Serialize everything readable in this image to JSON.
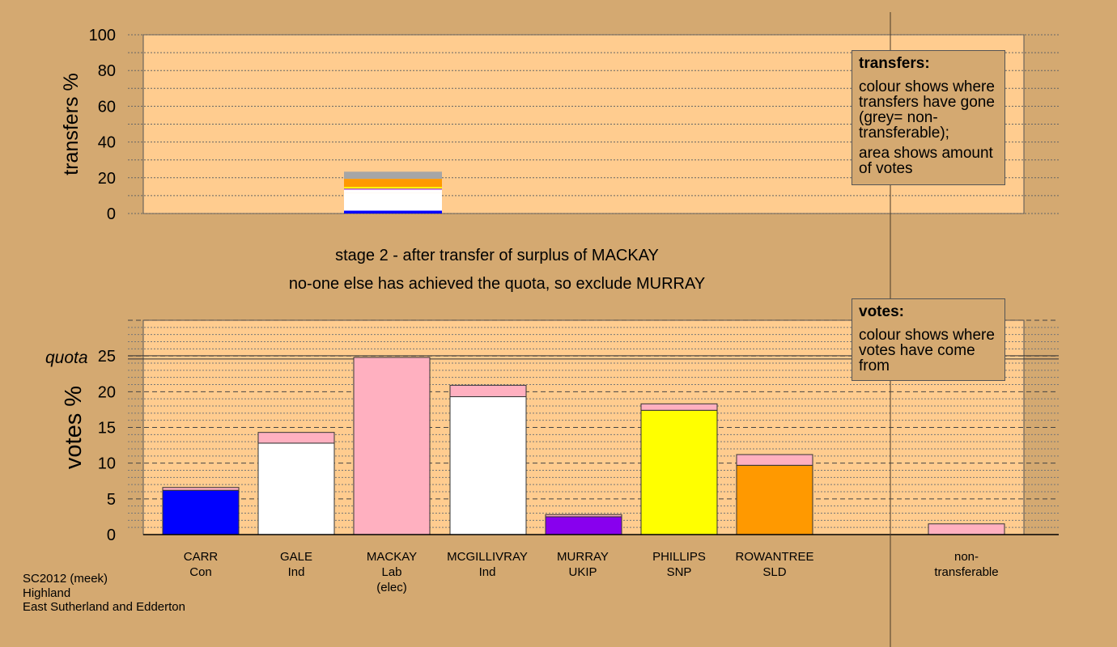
{
  "chart_data": [
    {
      "type": "bar",
      "ylabel": "transfers %",
      "ylim": [
        0,
        100
      ],
      "yticks": [
        0,
        20,
        40,
        60,
        80,
        100
      ],
      "stacked_bar": {
        "category": "MACKAY",
        "segments": [
          {
            "name": "CARR",
            "value": 1.6,
            "color": "#0000ff"
          },
          {
            "name": "GALE",
            "value": 10.0,
            "color": "#ffffff"
          },
          {
            "name": "MCGILLIVRAY",
            "value": 1.8,
            "color": "#ffffff"
          },
          {
            "name": "MURRAY",
            "value": 0.5,
            "color": "#8800ee"
          },
          {
            "name": "PHILLIPS",
            "value": 1.0,
            "color": "#ffff00"
          },
          {
            "name": "ROWANTREE",
            "value": 4.5,
            "color": "#ff9900"
          },
          {
            "name": "non-transferable",
            "value": 4.0,
            "color": "#a6a6a6"
          }
        ]
      }
    },
    {
      "type": "bar",
      "ylabel": "votes %",
      "ylim": [
        0,
        30
      ],
      "yticks": [
        0,
        5,
        10,
        15,
        20,
        25
      ],
      "quota": 24.8,
      "quota_label": "quota",
      "categories": [
        "CARR",
        "GALE",
        "MACKAY",
        "MCGILLIVRAY",
        "MURRAY",
        "PHILLIPS",
        "ROWANTREE",
        "non-transferable"
      ],
      "bars": [
        {
          "name": "CARR",
          "base": 6.2,
          "transfer": 0.4,
          "color": "#0000ff"
        },
        {
          "name": "GALE",
          "base": 12.8,
          "transfer": 1.5,
          "color": "#ffffff"
        },
        {
          "name": "MACKAY",
          "base": 24.8,
          "transfer": 0,
          "color": "#ffb0c0"
        },
        {
          "name": "MCGILLIVRAY",
          "base": 19.3,
          "transfer": 1.6,
          "color": "#ffffff"
        },
        {
          "name": "MURRAY",
          "base": 2.5,
          "transfer": 0.3,
          "color": "#8800ee"
        },
        {
          "name": "PHILLIPS",
          "base": 17.4,
          "transfer": 0.9,
          "color": "#ffff00"
        },
        {
          "name": "ROWANTREE",
          "base": 9.7,
          "transfer": 1.5,
          "color": "#ff9900"
        },
        {
          "name": "non-transferable",
          "base": 0,
          "transfer": 1.5,
          "color": "#ffb0c0"
        }
      ],
      "transfer_color": "#ffb0c0"
    }
  ],
  "candidates": [
    {
      "line1": "CARR",
      "line2": "Con",
      "line3": ""
    },
    {
      "line1": "GALE",
      "line2": "Ind",
      "line3": ""
    },
    {
      "line1": "MACKAY",
      "line2": "Lab",
      "line3": "(elec)"
    },
    {
      "line1": "MCGILLIVRAY",
      "line2": "Ind",
      "line3": ""
    },
    {
      "line1": "MURRAY",
      "line2": "UKIP",
      "line3": ""
    },
    {
      "line1": "PHILLIPS",
      "line2": "SNP",
      "line3": ""
    },
    {
      "line1": "ROWANTREE",
      "line2": "SLD",
      "line3": ""
    },
    {
      "line1": "non-",
      "line2": "transferable",
      "line3": ""
    }
  ],
  "stage": {
    "line1": "stage 2 - after transfer of surplus of MACKAY",
    "line2": "no-one else has achieved the quota, so exclude MURRAY"
  },
  "transfers_box": {
    "title": "transfers:",
    "para1": "colour shows where transfers have gone (grey= non-transferable);",
    "para2": "area shows amount of votes"
  },
  "votes_box": {
    "title": "votes:",
    "para1": "colour shows where votes have come from"
  },
  "footer": {
    "line1": "SC2012 (meek)",
    "line2": "Highland",
    "line3": "East Sutherland and Edderton"
  }
}
